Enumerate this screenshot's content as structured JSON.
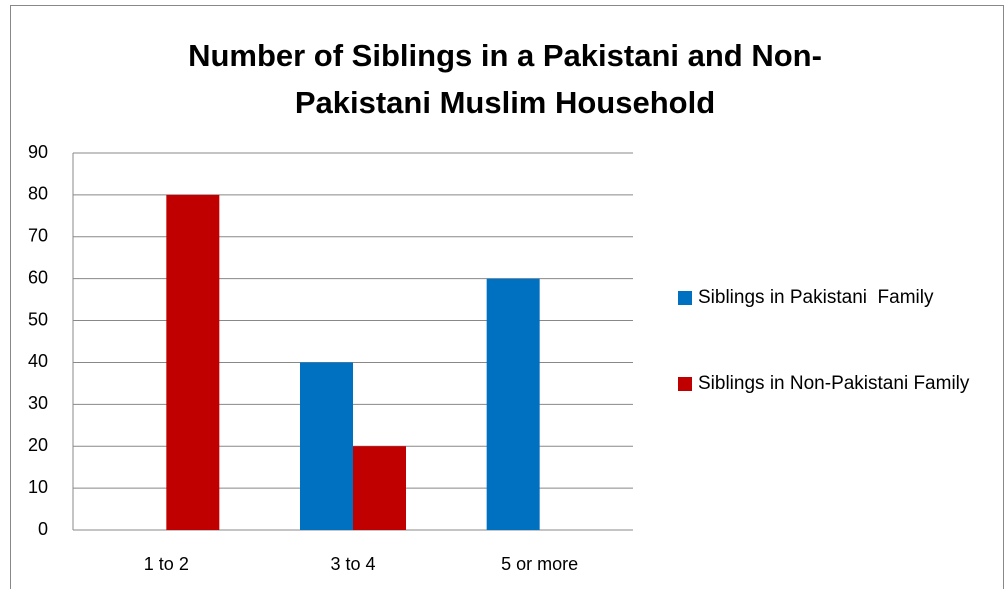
{
  "chart_data": {
    "type": "bar",
    "title": "Number of Siblings in a Pakistani and Non-Pakistani Muslim Household",
    "categories": [
      "1 to 2",
      "3 to 4",
      "5 or more"
    ],
    "series": [
      {
        "name": "Siblings in Pakistani  Family",
        "color": "#0070c0",
        "values": [
          0,
          40,
          60
        ]
      },
      {
        "name": "Siblings in Non-Pakistani Family",
        "color": "#c00000",
        "values": [
          80,
          20,
          0
        ]
      }
    ],
    "ylim": [
      0,
      90
    ],
    "yticks": [
      0,
      10,
      20,
      30,
      40,
      50,
      60,
      70,
      80,
      90
    ],
    "grid": true,
    "legend": "right"
  }
}
